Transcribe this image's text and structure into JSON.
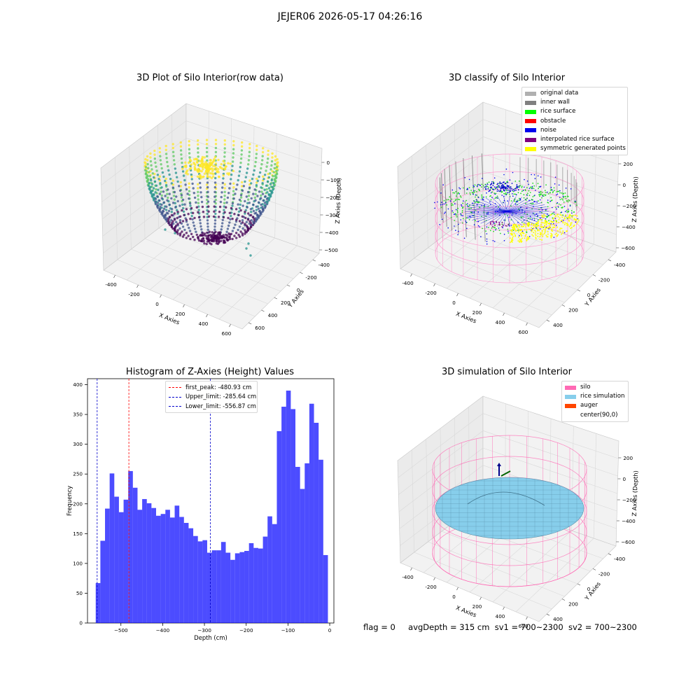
{
  "figure": {
    "suptitle": "JEJER06 2026-05-17 04:26:16",
    "footer": {
      "flag": "flag = 0",
      "avg_depth": "avgDepth = 315 cm",
      "sv1": "sv1 = 700~2300",
      "sv2": "sv2 = 700~2300"
    }
  },
  "panels": {
    "raw": {
      "title": "3D Plot of Silo Interior(row data)",
      "xlabel": "X Axies",
      "ylabel": "Y Axies",
      "zlabel": "Z Axies (Depth)",
      "xticks": [
        "-400",
        "-200",
        "0",
        "200",
        "400",
        "600"
      ],
      "yticks": [
        "-400",
        "-200",
        "0",
        "200",
        "400",
        "600"
      ],
      "zticks": [
        "0",
        "−100",
        "−200",
        "−300",
        "−400",
        "−500"
      ]
    },
    "classify": {
      "title": "3D classify of Silo Interior",
      "xlabel": "X Axies",
      "ylabel": "Y Axies",
      "zlabel": "Z Axies (Depth)",
      "xticks": [
        "-400",
        "-200",
        "0",
        "200",
        "400",
        "600"
      ],
      "yticks": [
        "-400",
        "-200",
        "0",
        "200",
        "400"
      ],
      "zticks": [
        "200",
        "0",
        "−200",
        "−400",
        "−600"
      ],
      "legend": [
        {
          "label": "original data",
          "color": "#b0b0b0"
        },
        {
          "label": "inner wall",
          "color": "#808080"
        },
        {
          "label": "rice surface",
          "color": "#00ff00"
        },
        {
          "label": "obstacle",
          "color": "#ff0000"
        },
        {
          "label": "noise",
          "color": "#0000ee"
        },
        {
          "label": "interpolated rice surface",
          "color": "#800080"
        },
        {
          "label": "symmetric generated points",
          "color": "#ffff00"
        }
      ]
    },
    "simulation": {
      "title": "3D simulation of Silo Interior",
      "xlabel": "X Axies",
      "ylabel": "Y Axies",
      "zlabel": "Z Axies (Depth)",
      "xticks": [
        "-400",
        "-200",
        "0",
        "200",
        "400",
        "600"
      ],
      "yticks": [
        "-400",
        "-200",
        "0",
        "200",
        "400"
      ],
      "zticks": [
        "200",
        "0",
        "−200",
        "−400",
        "−600"
      ],
      "legend": [
        {
          "label": "silo",
          "color": "#ff69b4"
        },
        {
          "label": "rice simulation",
          "color": "#87ceeb"
        },
        {
          "label": "auger",
          "color": "#ff4500"
        },
        {
          "label": "center(90,0)",
          "color": "#ffffff"
        }
      ]
    }
  },
  "chart_data": {
    "type": "bar",
    "title": "Histogram of Z-Axies (Height) Values",
    "xlabel": "Depth (cm)",
    "ylabel": "Frequency",
    "xlim": [
      -580,
      10
    ],
    "ylim": [
      0,
      410
    ],
    "xticks": [
      -500,
      -400,
      -300,
      -200,
      -100,
      0
    ],
    "xtick_labels": [
      "−500",
      "−400",
      "−300",
      "−200",
      "−100",
      "0"
    ],
    "yticks": [
      0,
      50,
      100,
      150,
      200,
      250,
      300,
      350,
      400
    ],
    "bar_color": "#0000ff",
    "bar_alpha": 0.7,
    "bin_start": -560.3,
    "bin_width": 11.12,
    "counts": [
      67,
      138,
      192,
      251,
      212,
      186,
      207,
      255,
      227,
      190,
      208,
      201,
      193,
      180,
      183,
      190,
      177,
      197,
      178,
      168,
      159,
      146,
      137,
      139,
      118,
      122,
      122,
      136,
      118,
      106,
      117,
      119,
      121,
      134,
      126,
      125,
      145,
      179,
      166,
      322,
      363,
      390,
      359,
      262,
      225,
      268,
      368,
      336,
      274,
      114
    ],
    "lines": [
      {
        "label": "first_peak: -480.93 cm",
        "value": -480.93,
        "color": "#ff0000"
      },
      {
        "label": "Upper_limit: -285.64 cm",
        "value": -285.64,
        "color": "#0000cc"
      },
      {
        "label": "Lower_limit: -556.87 cm",
        "value": -556.87,
        "color": "#0000cc"
      }
    ]
  }
}
